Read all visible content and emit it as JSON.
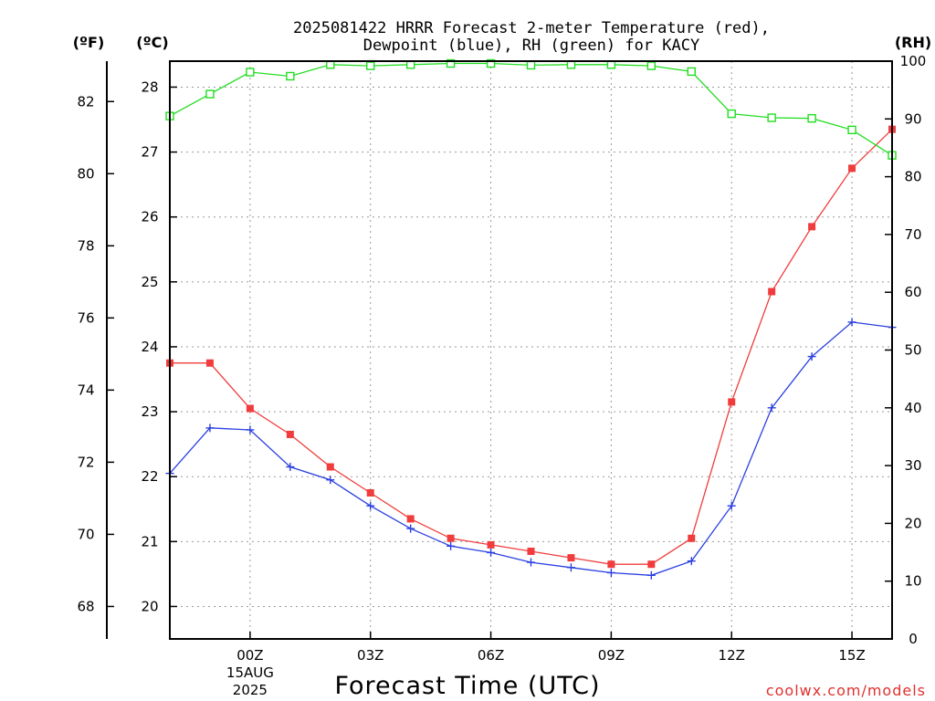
{
  "chart_data": {
    "type": "line",
    "title_line1": "2025081422 HRRR Forecast 2-meter Temperature (red),",
    "title_line2": "Dewpoint (blue), RH (green) for KACY",
    "xlabel": "Forecast Time (UTC)",
    "credit": "coolwx.com/models",
    "units": {
      "fahrenheit": "(ºF)",
      "celsius": "(ºC)",
      "rh": "(RH)"
    },
    "x_hours": [
      -2,
      -1,
      0,
      1,
      2,
      3,
      4,
      5,
      6,
      7,
      8,
      9,
      10,
      11,
      12,
      13,
      14,
      15,
      16
    ],
    "xlim": [
      -2,
      16
    ],
    "x_ticks": [
      {
        "hour": 0,
        "label": "00Z",
        "sub1": "15AUG",
        "sub2": "2025"
      },
      {
        "hour": 3,
        "label": "03Z"
      },
      {
        "hour": 6,
        "label": "06Z"
      },
      {
        "hour": 9,
        "label": "09Z"
      },
      {
        "hour": 12,
        "label": "12Z"
      },
      {
        "hour": 15,
        "label": "15Z"
      }
    ],
    "celsius_axis": {
      "ylim": [
        19.5,
        28.4
      ],
      "ticks": [
        20,
        21,
        22,
        23,
        24,
        25,
        26,
        27,
        28
      ]
    },
    "fahrenheit_axis": {
      "ticks": [
        68,
        70,
        72,
        74,
        76,
        78,
        80,
        82
      ]
    },
    "rh_axis": {
      "ylim": [
        0,
        100
      ],
      "ticks": [
        0,
        10,
        20,
        30,
        40,
        50,
        60,
        70,
        80,
        90,
        100
      ]
    },
    "series": [
      {
        "key": "temperature",
        "color": "#f03c3c",
        "marker": "filled-square",
        "axis": "celsius",
        "values": [
          23.75,
          23.75,
          23.05,
          22.65,
          22.15,
          21.75,
          21.35,
          21.05,
          20.95,
          20.85,
          20.75,
          20.65,
          20.65,
          21.05,
          23.15,
          24.85,
          25.85,
          26.75,
          27.35
        ]
      },
      {
        "key": "dewpoint",
        "color": "#2a3fe0",
        "marker": "plus",
        "axis": "celsius",
        "values": [
          22.05,
          22.75,
          22.72,
          22.15,
          21.95,
          21.55,
          21.2,
          20.93,
          20.83,
          20.68,
          20.6,
          20.52,
          20.48,
          20.7,
          21.55,
          23.06,
          23.85,
          24.38,
          24.3
        ]
      },
      {
        "key": "rh",
        "color": "#22dd22",
        "marker": "open-square",
        "axis": "rh",
        "values": [
          90.5,
          94.3,
          98.1,
          97.4,
          99.4,
          99.2,
          99.4,
          99.6,
          99.6,
          99.3,
          99.4,
          99.4,
          99.2,
          98.2,
          90.9,
          90.2,
          90.1,
          88.1,
          83.7
        ]
      }
    ]
  }
}
